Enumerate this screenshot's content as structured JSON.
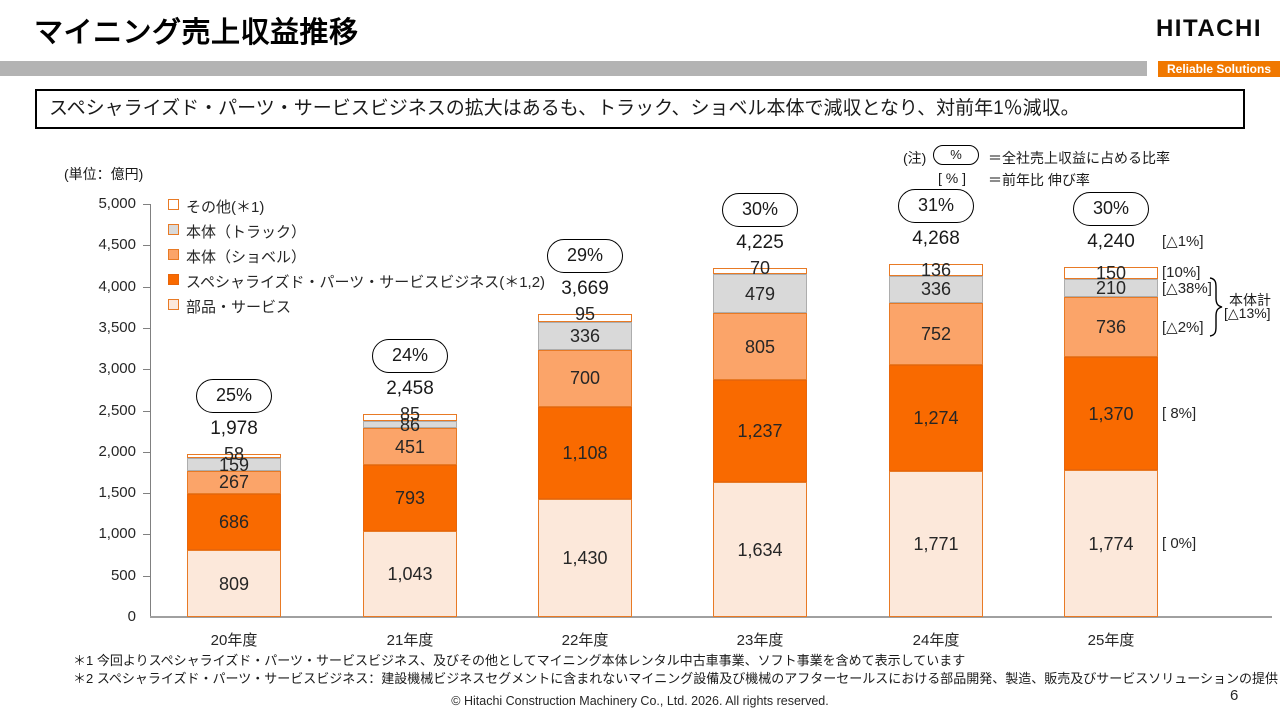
{
  "slide": {
    "title": "マイニング売上収益推移",
    "logo_text": "HITACHI",
    "tagline": "Reliable Solutions",
    "key_message": "スペシャライズド・パーツ・サービスビジネスの拡大はあるも、トラック、ショベル本体で減収となり、対前年1％減収。",
    "page_number": "6",
    "copyright": "© Hitachi Construction Machinery Co., Ltd. 2026. All rights reserved.",
    "footnote1": "＊1 今回よりスペシャライズド・パーツ・サービスビジネス、及びその他としてマイニング本体レンタル中古車事業、ソフト事業を含めて表示しています",
    "footnote2": "＊2 スペシャライズド・パーツ・サービスビジネス：建設機械ビジネスセグメントに含まれないマイニング設備及び機械のアフターセールスにおける部品開発、製造、販売及びサービスソリューションの提供"
  },
  "note": {
    "prefix": "(注)",
    "oval_symbol": "%",
    "line1_text": "＝全社売上収益に占める比率",
    "line2_symbol": "[ % ]",
    "line2_text": "＝前年比 伸び率"
  },
  "chart_data": {
    "type": "bar",
    "stacked": true,
    "title": "マイニング売上収益推移",
    "unit_label": "(単位：億円)",
    "categories": [
      "20年度",
      "21年度",
      "22年度",
      "23年度",
      "24年度",
      "25年度"
    ],
    "series": [
      {
        "name": "部品・サービス",
        "color": "#FCE8DA",
        "border": "#E87A25",
        "values": [
          809,
          1043,
          1430,
          1634,
          1771,
          1774
        ]
      },
      {
        "name": "スペシャライズド・パーツ・サービスビジネス(＊1,2)",
        "color": "#F96A00",
        "border": "#E8650A",
        "values": [
          686,
          793,
          1108,
          1237,
          1274,
          1370
        ]
      },
      {
        "name": "本体（ショベル）",
        "color": "#FBA469",
        "border": "#E87A25",
        "values": [
          267,
          451,
          700,
          805,
          752,
          736
        ]
      },
      {
        "name": "本体（トラック）",
        "color": "#D9D9D9",
        "border": "#ADADAD",
        "values": [
          159,
          86,
          336,
          479,
          336,
          210
        ]
      },
      {
        "name": "その他(＊1)",
        "color": "#FFFFFF",
        "border": "#E87A25",
        "values": [
          58,
          85,
          95,
          70,
          136,
          150
        ]
      }
    ],
    "legend": [
      {
        "label": "その他(＊1)",
        "color": "#FFFFFF",
        "border": "#E87A25"
      },
      {
        "label": "本体（トラック）",
        "color": "#D9D9D9",
        "border": "#E87A25"
      },
      {
        "label": "本体（ショベル）",
        "color": "#FBA469",
        "border": "#E87A25"
      },
      {
        "label": "スペシャライズド・パーツ・サービスビジネス(＊1,2)",
        "color": "#F96A00",
        "border": "#E8650A"
      },
      {
        "label": "部品・サービス",
        "color": "#FCE8DA",
        "border": "#E87A25"
      }
    ],
    "totals": [
      "1,978",
      "2,458",
      "3,669",
      "4,225",
      "4,268",
      "4,240"
    ],
    "share_percentages": [
      "25%",
      "24%",
      "29%",
      "30%",
      "31%",
      "30%"
    ],
    "ylim": [
      0,
      5000
    ],
    "ytick_step": 500,
    "legend_position": "upper-left",
    "grid": false
  },
  "annotations": {
    "bar6": [
      {
        "label": "[△1%]",
        "anchor": "total"
      },
      {
        "label": "[10%]",
        "anchor": "series-4"
      },
      {
        "label": "[△38%]",
        "anchor": "series-3"
      },
      {
        "label": "[△2%]",
        "anchor": "series-2"
      },
      {
        "label": "[ 8%]",
        "anchor": "series-1"
      },
      {
        "label": "[ 0%]",
        "anchor": "series-0"
      }
    ],
    "group_label": "本体計",
    "group_value": "[△13%]"
  }
}
